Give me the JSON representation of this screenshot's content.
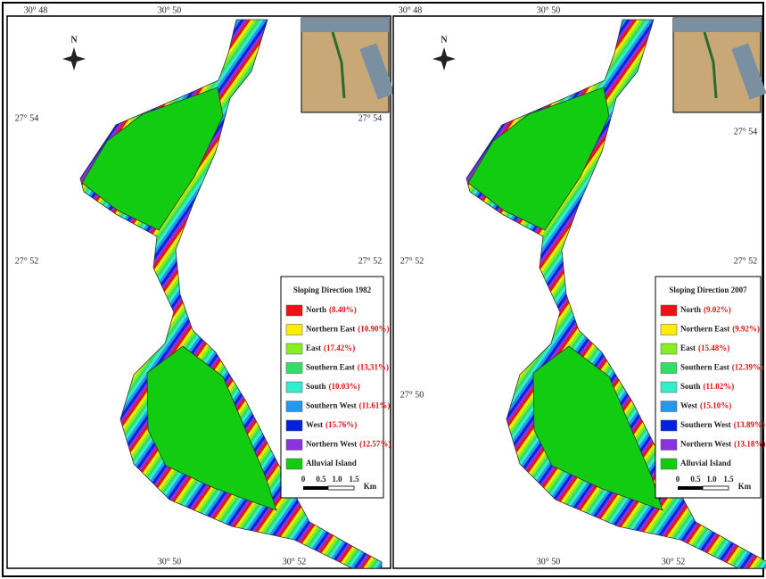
{
  "panels": [
    {
      "coords": {
        "top": [
          "30° 48",
          "30° 50"
        ],
        "left": [
          "27° 54",
          "27° 52"
        ],
        "right": [
          "27° 54",
          "27° 52"
        ],
        "bottom": [
          "30° 50",
          "30° 52"
        ]
      },
      "north": "N",
      "legend": {
        "title": "Sloping Direction 1982",
        "items": [
          {
            "name": "North",
            "value": "(8.40%)",
            "color": "#ee1111"
          },
          {
            "name": "Northern East",
            "value": "(10.90%)",
            "color": "#ffee00"
          },
          {
            "name": "East",
            "value": "(17.42%)",
            "color": "#88ee22"
          },
          {
            "name": "Southern East",
            "value": "(13,31%)",
            "color": "#33dd66"
          },
          {
            "name": "South",
            "value": "(10.03%)",
            "color": "#33eecc"
          },
          {
            "name": "Southern West",
            "value": "(11.61%)",
            "color": "#2299ee"
          },
          {
            "name": "West",
            "value": "(15.76%)",
            "color": "#0022dd"
          },
          {
            "name": "Northern West",
            "value": "(12.57%)",
            "color": "#8833dd"
          },
          {
            "name": "Alluvial Island",
            "color": "#11cc11"
          }
        ]
      },
      "scale": [
        "0",
        "0.5",
        "1.0",
        "1.5",
        "Km"
      ]
    },
    {
      "coords": {
        "top": [
          "30° 48",
          "30° 50"
        ],
        "left": [
          "27° 52",
          "27° 50"
        ],
        "right": [
          "27° 54",
          "27° 52"
        ],
        "bottom": [
          "30° 50",
          "30° 52"
        ]
      },
      "north": "N",
      "legend": {
        "title": "Sloping Direction 2007",
        "items": [
          {
            "name": "North",
            "value": "(9.02%)",
            "color": "#ee1111"
          },
          {
            "name": "Northern East",
            "value": "(9.92%)",
            "color": "#ffee00"
          },
          {
            "name": "East",
            "value": "(15.48%)",
            "color": "#88ee22"
          },
          {
            "name": "Southern East",
            "value": "(12.39%)",
            "color": "#33dd66"
          },
          {
            "name": "South",
            "value": "(11.02%)",
            "color": "#33eecc"
          },
          {
            "name": "West",
            "value": "(15.10%)",
            "color": "#2299ee"
          },
          {
            "name": "Southern West",
            "value": "(13.89%)",
            "color": "#0022dd"
          },
          {
            "name": "Northern West",
            "value": "(13.18%)",
            "color": "#8833dd"
          },
          {
            "name": "Alluvial Island",
            "color": "#11cc11"
          }
        ]
      },
      "scale": [
        "0",
        "0.5",
        "1.0",
        "1.5",
        "Km"
      ]
    }
  ]
}
